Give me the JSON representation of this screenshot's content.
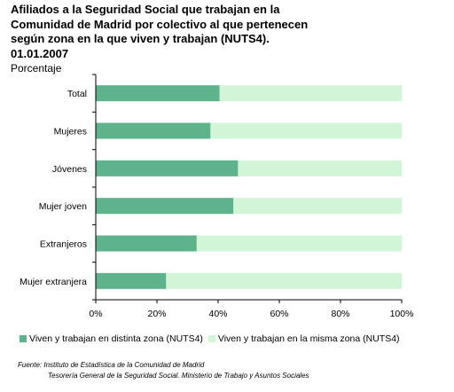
{
  "title_lines": [
    "Afiliados a la Seguridad Social que trabajan en la",
    "Comunidad de Madrid por colectivo al que pertenecen",
    "según zona en la que viven y trabajan (NUTS4).",
    "01.01.2007"
  ],
  "unit_label": "Porcentaje",
  "source": {
    "line1": "Fuente: Instituto de Estadística de la Comunidad de Madrid",
    "line2": "Tesorería General de la Seguridad Social. Ministerio de Trabajo y Asuntos Sociales"
  },
  "colors": {
    "series_distinta": "#5fb38c",
    "series_misma": "#d2f5d7"
  },
  "chart_data": {
    "type": "bar",
    "orientation": "horizontal",
    "stacked": true,
    "categories": [
      "Total",
      "Mujeres",
      "Jóvenes",
      "Mujer joven",
      "Extranjeros",
      "Mujer extranjera"
    ],
    "series": [
      {
        "name": "Viven y trabajan en distinta zona (NUTS4)",
        "values": [
          40.5,
          37.5,
          46.5,
          45,
          33,
          23
        ]
      },
      {
        "name": "Viven y trabajan en la misma zona (NUTS4)",
        "values": [
          59.5,
          62.5,
          53.5,
          55,
          67,
          77
        ]
      }
    ],
    "xlim": [
      0,
      100
    ],
    "xticks": [
      "0%",
      "20%",
      "40%",
      "60%",
      "80%",
      "100%"
    ],
    "xtick_values": [
      0,
      20,
      40,
      60,
      80,
      100
    ],
    "grid": false,
    "legend_position": "bottom"
  }
}
